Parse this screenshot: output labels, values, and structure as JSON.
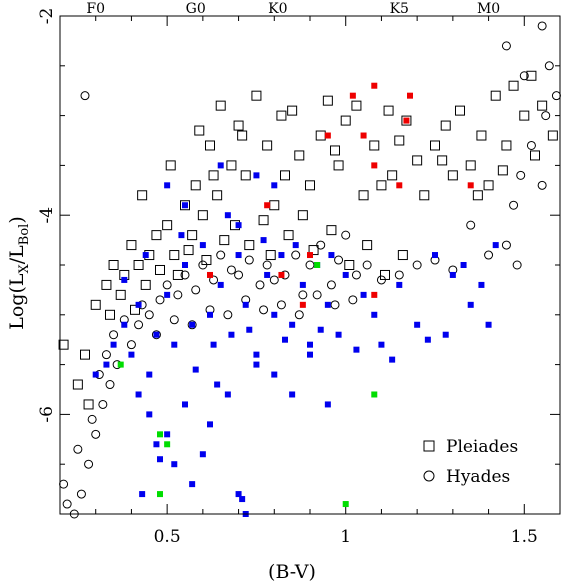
{
  "chart_data": {
    "type": "scatter",
    "xlabel": "(B-V)",
    "ylabel_main": "Log(L",
    "ylabel_sub1": "X",
    "ylabel_mid": "/L",
    "ylabel_sub2": "Bol",
    "ylabel_end": ")",
    "xlim": [
      0.2,
      1.6
    ],
    "ylim": [
      -7.0,
      -2.0
    ],
    "x_ticks": [
      {
        "value": 0.5,
        "label": "0.5"
      },
      {
        "value": 1.0,
        "label": "1"
      },
      {
        "value": 1.5,
        "label": "1.5"
      }
    ],
    "y_ticks": [
      {
        "value": -2,
        "label": "-2"
      },
      {
        "value": -4,
        "label": "-4"
      },
      {
        "value": -6,
        "label": "-6"
      }
    ],
    "x_minor_step": 0.1,
    "y_minor_step": 0.5,
    "spectral_types": [
      {
        "value": 0.3,
        "label": "F0"
      },
      {
        "value": 0.58,
        "label": "G0"
      },
      {
        "value": 0.81,
        "label": "K0"
      },
      {
        "value": 1.15,
        "label": "K5"
      },
      {
        "value": 1.4,
        "label": "M0"
      }
    ],
    "legend": [
      {
        "label": "Pleiades",
        "marker": "open-square"
      },
      {
        "label": "Hyades",
        "marker": "open-circle"
      }
    ],
    "colors": {
      "blue": "#0000ee",
      "red": "#ee0000",
      "green": "#00dd00",
      "black": "#000000"
    },
    "series": [
      {
        "name": "Pleiades",
        "marker": "open-square",
        "color": "#000000",
        "points": [
          [
            0.21,
            -5.3
          ],
          [
            0.27,
            -5.4
          ],
          [
            0.25,
            -5.7
          ],
          [
            0.28,
            -5.9
          ],
          [
            0.3,
            -4.9
          ],
          [
            0.33,
            -4.7
          ],
          [
            0.35,
            -4.5
          ],
          [
            0.38,
            -4.6
          ],
          [
            0.4,
            -4.3
          ],
          [
            0.42,
            -4.5
          ],
          [
            0.45,
            -4.4
          ],
          [
            0.47,
            -4.2
          ],
          [
            0.5,
            -4.1
          ],
          [
            0.52,
            -4.4
          ],
          [
            0.55,
            -3.9
          ],
          [
            0.57,
            -4.2
          ],
          [
            0.58,
            -3.7
          ],
          [
            0.6,
            -4.0
          ],
          [
            0.62,
            -3.3
          ],
          [
            0.64,
            -3.8
          ],
          [
            0.65,
            -2.9
          ],
          [
            0.68,
            -3.5
          ],
          [
            0.7,
            -3.1
          ],
          [
            0.72,
            -3.6
          ],
          [
            0.75,
            -2.8
          ],
          [
            0.78,
            -3.3
          ],
          [
            0.8,
            -3.9
          ],
          [
            0.82,
            -3.0
          ],
          [
            0.85,
            -2.95
          ],
          [
            0.87,
            -3.4
          ],
          [
            0.9,
            -3.7
          ],
          [
            0.93,
            -3.2
          ],
          [
            0.95,
            -2.85
          ],
          [
            0.98,
            -3.5
          ],
          [
            1.0,
            -3.05
          ],
          [
            1.03,
            -2.9
          ],
          [
            1.05,
            -3.8
          ],
          [
            1.08,
            -3.3
          ],
          [
            1.1,
            -3.7
          ],
          [
            1.12,
            -2.95
          ],
          [
            1.15,
            -3.25
          ],
          [
            1.17,
            -3.05
          ],
          [
            1.2,
            -3.45
          ],
          [
            1.22,
            -3.8
          ],
          [
            1.25,
            -3.3
          ],
          [
            1.28,
            -3.1
          ],
          [
            1.3,
            -3.6
          ],
          [
            1.32,
            -2.95
          ],
          [
            1.35,
            -3.5
          ],
          [
            1.38,
            -3.2
          ],
          [
            1.4,
            -3.7
          ],
          [
            1.42,
            -2.8
          ],
          [
            1.45,
            -3.3
          ],
          [
            1.47,
            -2.7
          ],
          [
            1.5,
            -3.0
          ],
          [
            1.52,
            -2.6
          ],
          [
            1.55,
            -2.9
          ],
          [
            1.58,
            -3.2
          ],
          [
            0.34,
            -5.0
          ],
          [
            0.37,
            -4.8
          ],
          [
            0.41,
            -4.95
          ],
          [
            0.44,
            -4.7
          ],
          [
            0.48,
            -4.55
          ],
          [
            0.53,
            -4.6
          ],
          [
            0.56,
            -4.35
          ],
          [
            0.61,
            -4.45
          ],
          [
            0.66,
            -4.25
          ],
          [
            0.69,
            -4.1
          ],
          [
            0.73,
            -4.3
          ],
          [
            0.77,
            -4.05
          ],
          [
            0.79,
            -4.4
          ],
          [
            0.84,
            -4.2
          ],
          [
            0.88,
            -4.0
          ],
          [
            0.91,
            -4.35
          ],
          [
            0.96,
            -4.15
          ],
          [
            1.01,
            -4.5
          ],
          [
            1.06,
            -4.3
          ],
          [
            1.11,
            -4.6
          ],
          [
            1.16,
            -4.4
          ],
          [
            0.43,
            -3.8
          ],
          [
            0.51,
            -3.5
          ],
          [
            0.59,
            -3.15
          ],
          [
            0.63,
            -3.6
          ],
          [
            0.71,
            -3.2
          ],
          [
            0.83,
            -3.6
          ],
          [
            0.97,
            -3.35
          ],
          [
            1.13,
            -3.6
          ],
          [
            1.27,
            -3.45
          ],
          [
            1.37,
            -3.8
          ],
          [
            1.44,
            -3.55
          ],
          [
            1.53,
            -3.4
          ]
        ]
      },
      {
        "name": "Hyades",
        "marker": "open-circle",
        "color": "#000000",
        "points": [
          [
            0.21,
            -6.7
          ],
          [
            0.22,
            -6.9
          ],
          [
            0.24,
            -7.0
          ],
          [
            0.26,
            -6.8
          ],
          [
            0.28,
            -6.5
          ],
          [
            0.3,
            -6.2
          ],
          [
            0.32,
            -5.9
          ],
          [
            0.34,
            -5.7
          ],
          [
            0.36,
            -5.5
          ],
          [
            0.27,
            -2.8
          ],
          [
            0.4,
            -5.3
          ],
          [
            0.42,
            -5.1
          ],
          [
            0.45,
            -5.0
          ],
          [
            0.48,
            -4.85
          ],
          [
            0.5,
            -4.7
          ],
          [
            0.53,
            -4.8
          ],
          [
            0.55,
            -4.6
          ],
          [
            0.58,
            -4.75
          ],
          [
            0.6,
            -4.5
          ],
          [
            0.63,
            -4.65
          ],
          [
            0.65,
            -4.4
          ],
          [
            0.68,
            -4.55
          ],
          [
            0.7,
            -4.6
          ],
          [
            0.73,
            -4.45
          ],
          [
            0.76,
            -4.7
          ],
          [
            0.78,
            -4.5
          ],
          [
            0.8,
            -4.65
          ],
          [
            0.83,
            -4.6
          ],
          [
            0.86,
            -4.4
          ],
          [
            0.88,
            -4.8
          ],
          [
            0.9,
            -4.5
          ],
          [
            0.93,
            -4.3
          ],
          [
            0.96,
            -4.7
          ],
          [
            0.98,
            -4.45
          ],
          [
            1.0,
            -4.2
          ],
          [
            1.03,
            -4.6
          ],
          [
            1.06,
            -4.5
          ],
          [
            1.1,
            -4.65
          ],
          [
            1.15,
            -4.6
          ],
          [
            1.2,
            -4.5
          ],
          [
            1.25,
            -4.45
          ],
          [
            1.3,
            -4.55
          ],
          [
            1.35,
            -4.1
          ],
          [
            1.4,
            -4.4
          ],
          [
            1.45,
            -4.3
          ],
          [
            1.48,
            -4.5
          ],
          [
            1.45,
            -2.3
          ],
          [
            1.5,
            -2.6
          ],
          [
            1.55,
            -2.1
          ],
          [
            1.57,
            -2.5
          ],
          [
            1.59,
            -2.8
          ],
          [
            1.56,
            -3.0
          ],
          [
            1.52,
            -3.3
          ],
          [
            1.49,
            -3.6
          ],
          [
            1.47,
            -3.9
          ],
          [
            1.55,
            -3.7
          ],
          [
            0.35,
            -5.2
          ],
          [
            0.38,
            -5.05
          ],
          [
            0.43,
            -4.9
          ],
          [
            0.47,
            -5.2
          ],
          [
            0.52,
            -5.05
          ],
          [
            0.57,
            -5.1
          ],
          [
            0.62,
            -4.95
          ],
          [
            0.67,
            -5.0
          ],
          [
            0.72,
            -4.85
          ],
          [
            0.77,
            -4.95
          ],
          [
            0.82,
            -4.9
          ],
          [
            0.87,
            -5.0
          ],
          [
            0.92,
            -4.8
          ],
          [
            0.97,
            -4.9
          ],
          [
            1.02,
            -4.85
          ],
          [
            0.25,
            -6.35
          ],
          [
            0.29,
            -6.05
          ],
          [
            0.31,
            -5.6
          ],
          [
            0.33,
            -5.4
          ]
        ]
      },
      {
        "name": "",
        "marker": "filled-square",
        "color": "#0000ee",
        "points": [
          [
            0.3,
            -5.6
          ],
          [
            0.33,
            -5.5
          ],
          [
            0.35,
            -5.3
          ],
          [
            0.38,
            -5.1
          ],
          [
            0.4,
            -5.4
          ],
          [
            0.42,
            -4.9
          ],
          [
            0.45,
            -5.6
          ],
          [
            0.47,
            -5.2
          ],
          [
            0.5,
            -4.8
          ],
          [
            0.52,
            -5.3
          ],
          [
            0.55,
            -4.5
          ],
          [
            0.57,
            -5.1
          ],
          [
            0.6,
            -4.3
          ],
          [
            0.62,
            -5.0
          ],
          [
            0.65,
            -4.7
          ],
          [
            0.68,
            -5.2
          ],
          [
            0.7,
            -4.4
          ],
          [
            0.72,
            -4.9
          ],
          [
            0.75,
            -5.4
          ],
          [
            0.78,
            -4.6
          ],
          [
            0.8,
            -5.0
          ],
          [
            0.82,
            -4.4
          ],
          [
            0.85,
            -5.1
          ],
          [
            0.88,
            -4.7
          ],
          [
            0.9,
            -5.3
          ],
          [
            0.92,
            -4.5
          ],
          [
            0.95,
            -4.9
          ],
          [
            0.98,
            -5.2
          ],
          [
            1.0,
            -4.6
          ],
          [
            1.05,
            -4.8
          ],
          [
            1.08,
            -5.0
          ],
          [
            1.1,
            -5.3
          ],
          [
            1.15,
            -4.7
          ],
          [
            1.2,
            -5.1
          ],
          [
            1.25,
            -4.4
          ],
          [
            1.28,
            -5.2
          ],
          [
            1.3,
            -4.6
          ],
          [
            1.33,
            -4.5
          ],
          [
            1.35,
            -4.9
          ],
          [
            1.38,
            -4.7
          ],
          [
            1.4,
            -5.1
          ],
          [
            1.42,
            -4.3
          ],
          [
            0.5,
            -3.7
          ],
          [
            0.55,
            -3.9
          ],
          [
            0.65,
            -3.5
          ],
          [
            0.7,
            -4.1
          ],
          [
            0.75,
            -3.6
          ],
          [
            0.8,
            -3.7
          ],
          [
            0.42,
            -5.8
          ],
          [
            0.45,
            -6.0
          ],
          [
            0.47,
            -6.3
          ],
          [
            0.5,
            -6.2
          ],
          [
            0.52,
            -6.5
          ],
          [
            0.55,
            -5.9
          ],
          [
            0.57,
            -6.7
          ],
          [
            0.6,
            -6.4
          ],
          [
            0.62,
            -6.1
          ],
          [
            0.64,
            -5.7
          ],
          [
            0.67,
            -5.8
          ],
          [
            0.7,
            -6.8
          ],
          [
            0.72,
            -7.0
          ],
          [
            0.75,
            -5.5
          ],
          [
            0.8,
            -5.6
          ],
          [
            0.85,
            -5.8
          ],
          [
            0.9,
            -5.4
          ],
          [
            0.95,
            -5.9
          ],
          [
            0.43,
            -6.8
          ],
          [
            0.48,
            -6.45
          ],
          [
            0.58,
            -5.55
          ],
          [
            0.63,
            -5.3
          ],
          [
            0.73,
            -5.15
          ],
          [
            0.83,
            -5.25
          ],
          [
            0.93,
            -5.15
          ],
          [
            1.03,
            -5.35
          ],
          [
            1.13,
            -5.45
          ],
          [
            1.23,
            -5.25
          ],
          [
            0.71,
            -6.85
          ],
          [
            0.38,
            -4.65
          ],
          [
            0.44,
            -4.4
          ],
          [
            0.54,
            -4.2
          ],
          [
            0.67,
            -4.0
          ],
          [
            0.77,
            -4.25
          ],
          [
            0.86,
            -4.3
          ],
          [
            0.96,
            -4.4
          ]
        ]
      },
      {
        "name": "",
        "marker": "filled-square",
        "color": "#ee0000",
        "points": [
          [
            0.62,
            -4.6
          ],
          [
            0.78,
            -3.9
          ],
          [
            0.82,
            -4.6
          ],
          [
            0.88,
            -4.9
          ],
          [
            0.95,
            -3.2
          ],
          [
            1.02,
            -2.8
          ],
          [
            1.05,
            -3.2
          ],
          [
            1.08,
            -2.7
          ],
          [
            1.08,
            -3.5
          ],
          [
            1.15,
            -3.7
          ],
          [
            1.17,
            -3.05
          ],
          [
            1.18,
            -2.8
          ],
          [
            1.35,
            -3.7
          ],
          [
            1.08,
            -4.8
          ],
          [
            0.9,
            -4.4
          ]
        ]
      },
      {
        "name": "",
        "marker": "filled-square",
        "color": "#00dd00",
        "points": [
          [
            0.37,
            -5.5
          ],
          [
            0.48,
            -6.2
          ],
          [
            0.5,
            -6.3
          ],
          [
            0.48,
            -6.8
          ],
          [
            0.92,
            -4.5
          ],
          [
            1.0,
            -6.9
          ],
          [
            1.08,
            -5.8
          ]
        ]
      }
    ]
  }
}
